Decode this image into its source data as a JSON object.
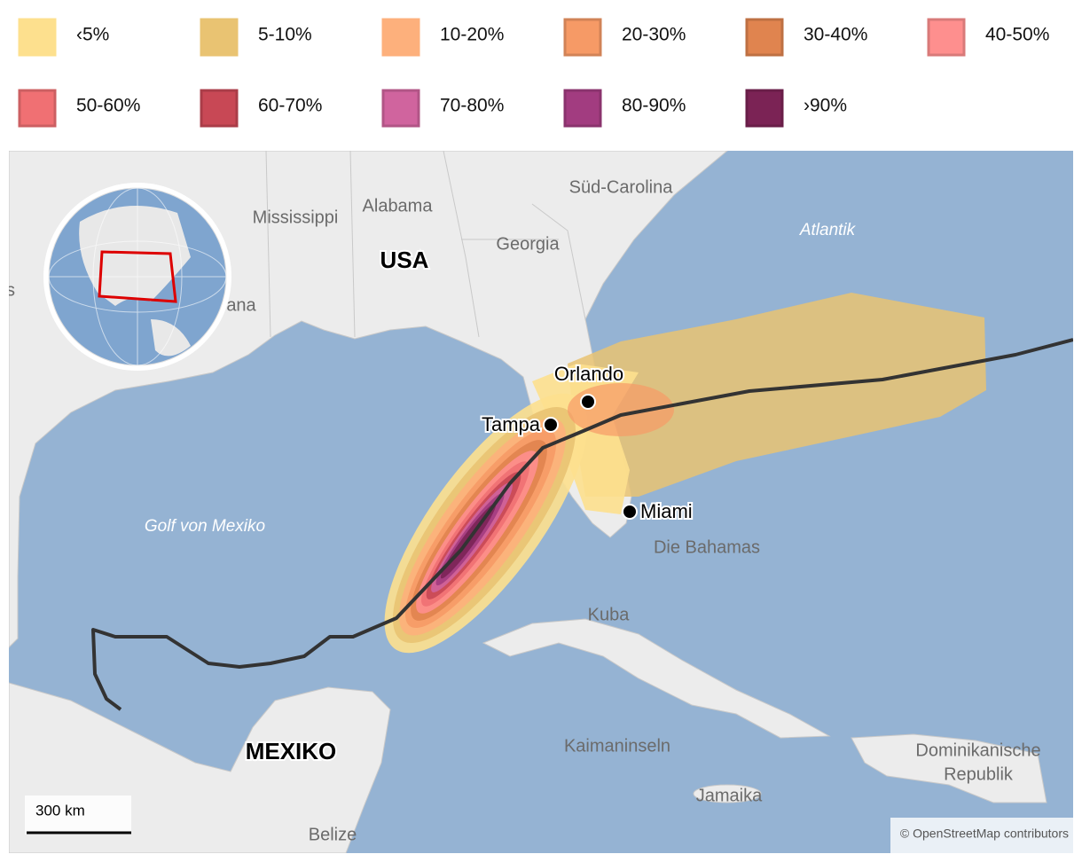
{
  "legend": [
    {
      "label": "‹5%",
      "color": "#fde08e"
    },
    {
      "label": "5-10%",
      "color": "#e9c372"
    },
    {
      "label": "10-20%",
      "color": "#fdb07c"
    },
    {
      "label": "20-30%",
      "color": "#f69a66"
    },
    {
      "label": "30-40%",
      "color": "#e0844f"
    },
    {
      "label": "40-50%",
      "color": "#fe8f8e"
    },
    {
      "label": "50-60%",
      "color": "#f07073"
    },
    {
      "label": "60-70%",
      "color": "#c84855"
    },
    {
      "label": "70-80%",
      "color": "#d0649e"
    },
    {
      "label": "80-90%",
      "color": "#a23c80"
    },
    {
      "label": "›90%",
      "color": "#7b2355"
    }
  ],
  "map": {
    "regions": [
      "Süd-Carolina",
      "Mississippi",
      "Alabama",
      "Georgia",
      "ana",
      "Die Bahamas",
      "Kuba",
      "Kaimaninseln",
      "Jamaika",
      "Belize",
      "Dominikanische",
      "Republik",
      "s"
    ],
    "countries": [
      "USA",
      "MEXIKO"
    ],
    "seas": [
      "Atlantik",
      "Golf von Mexiko"
    ],
    "cities": [
      "Orlando",
      "Tampa",
      "Miami"
    ],
    "scale": "300 km",
    "attribution": "© OpenStreetMap contributors"
  }
}
